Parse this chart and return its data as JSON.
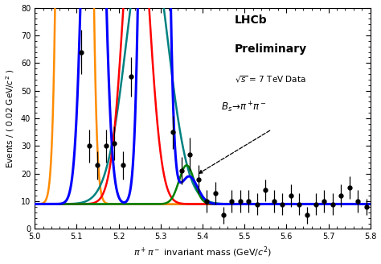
{
  "xlim": [
    5.0,
    5.8
  ],
  "ylim": [
    0,
    80
  ],
  "xlabel": "$\\pi^+\\pi^-$ invariant mass (GeV/$c^2$)",
  "ylabel": "Events / ( 0.02 GeV/$c^2$ )",
  "background_level": 9.0,
  "data_points": {
    "x": [
      5.11,
      5.13,
      5.15,
      5.17,
      5.19,
      5.21,
      5.23,
      5.33,
      5.35,
      5.37,
      5.39,
      5.41,
      5.43,
      5.45,
      5.47,
      5.49,
      5.51,
      5.53,
      5.55,
      5.57,
      5.59,
      5.61,
      5.63,
      5.65,
      5.67,
      5.69,
      5.71,
      5.73,
      5.75,
      5.77,
      5.79
    ],
    "y": [
      64,
      30,
      23,
      30,
      31,
      23,
      55,
      35,
      21,
      27,
      18,
      10,
      13,
      5,
      10,
      10,
      10,
      9,
      14,
      10,
      9,
      12,
      9,
      5,
      9,
      10,
      9,
      12,
      15,
      10,
      8
    ],
    "yerr": [
      8,
      6,
      5,
      6,
      6,
      5,
      7,
      6,
      5,
      6,
      5,
      4,
      4,
      3,
      4,
      4,
      4,
      4,
      4,
      4,
      4,
      4,
      4,
      3,
      4,
      4,
      4,
      4,
      4,
      4,
      3
    ]
  }
}
